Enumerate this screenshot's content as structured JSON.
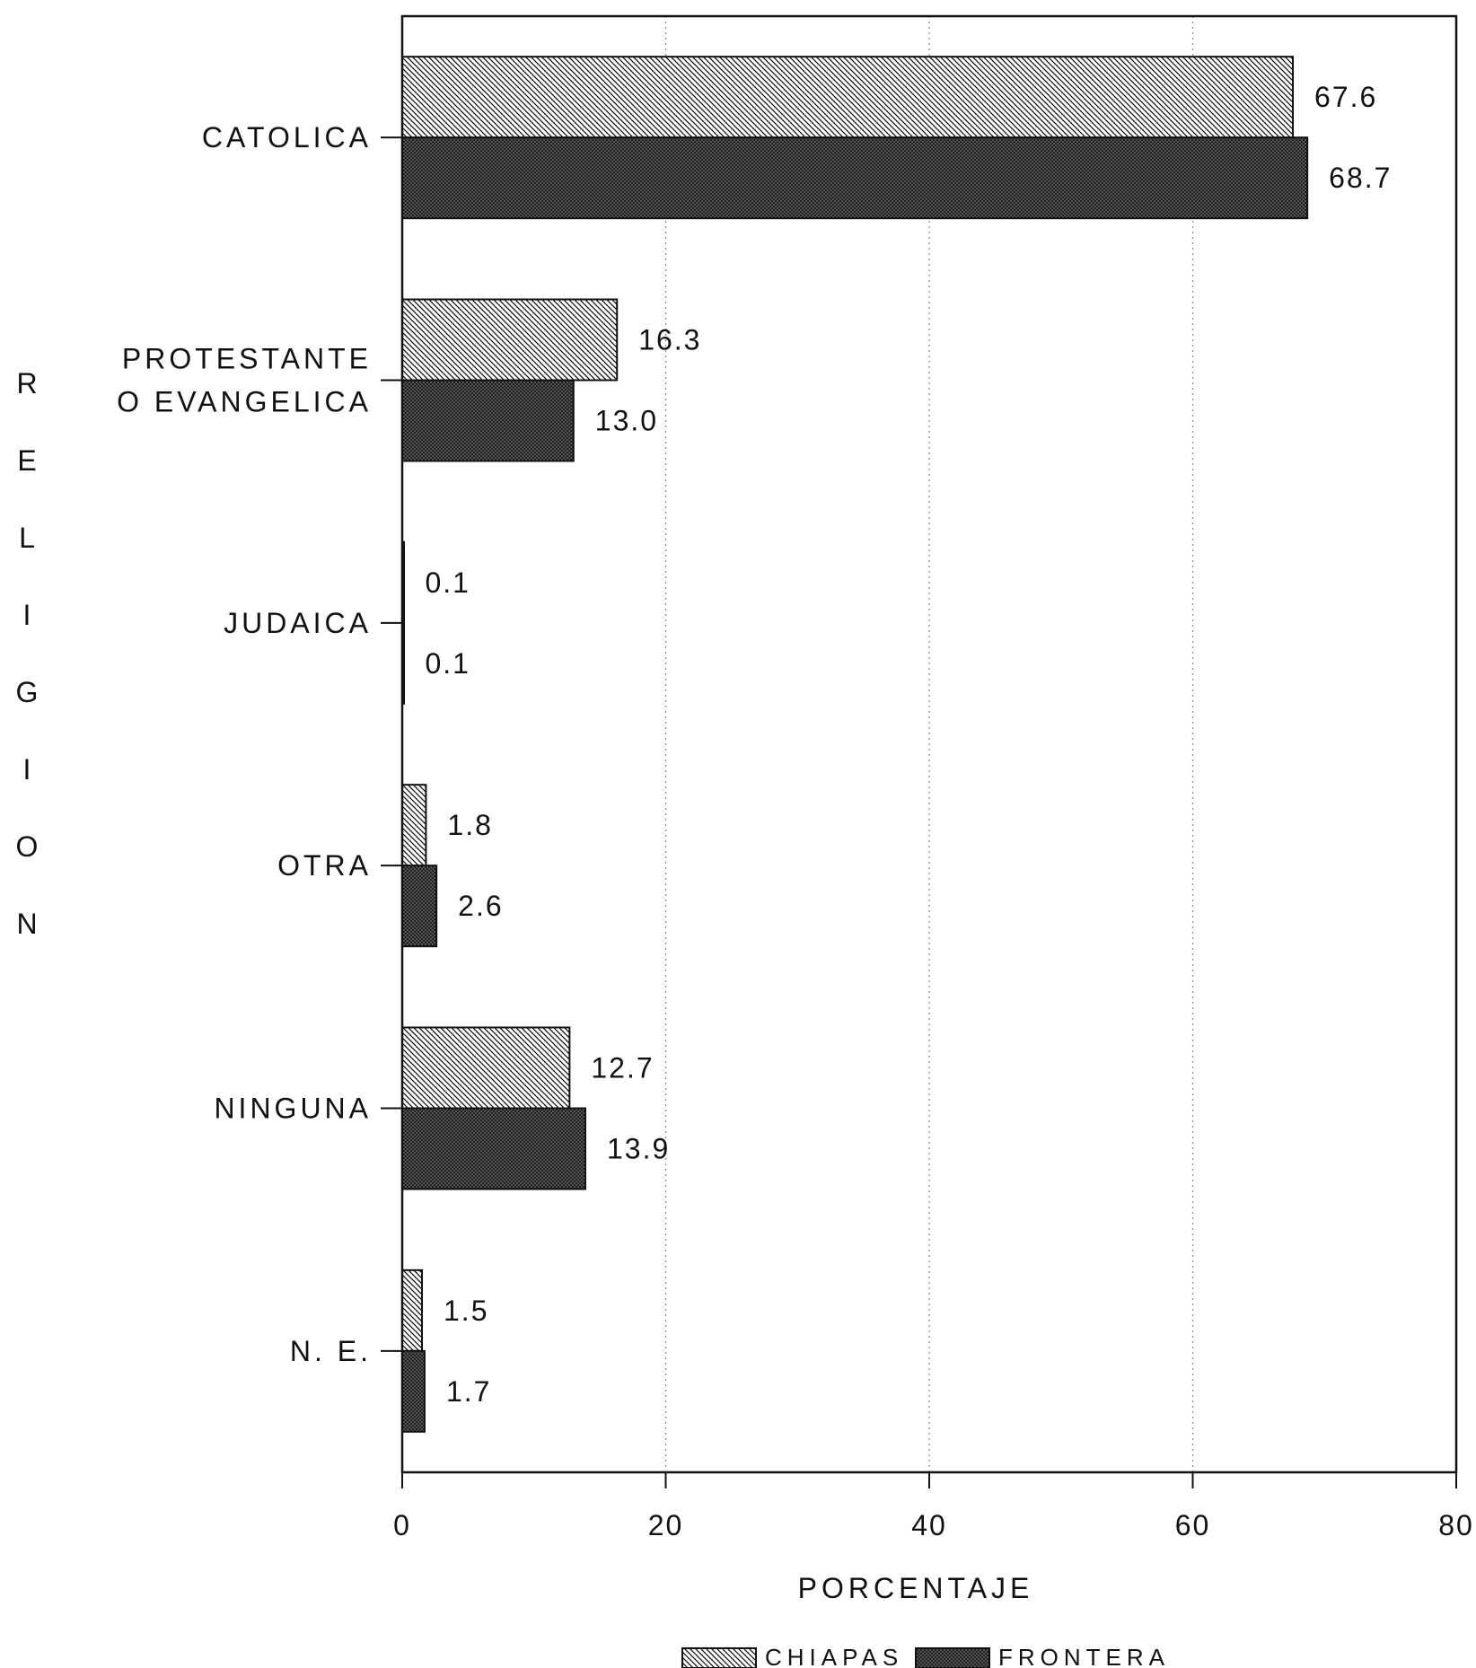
{
  "chart_data": {
    "type": "bar",
    "orientation": "horizontal",
    "categories": [
      "CATOLICA",
      "PROTESTANTE\nO EVANGELICA",
      "JUDAICA",
      "OTRA",
      "NINGUNA",
      "N. E."
    ],
    "series": [
      {
        "name": "CHIAPAS",
        "values": [
          67.6,
          16.3,
          0.1,
          1.8,
          12.7,
          1.5
        ],
        "pattern": "diagonal-hatch"
      },
      {
        "name": "FRONTERA",
        "values": [
          68.7,
          13.0,
          0.1,
          2.6,
          13.9,
          1.7
        ],
        "pattern": "crosshatch"
      }
    ],
    "value_labels": [
      [
        "67.6",
        "16.3",
        "0.1",
        "1.8",
        "12.7",
        "1.5"
      ],
      [
        "68.7",
        "13.0",
        "0.1",
        "2.6",
        "13.9",
        "1.7"
      ]
    ],
    "xlabel": "PORCENTAJE",
    "ylabel": "RELIGION",
    "xlim": [
      0,
      80
    ],
    "xticks": [
      "0",
      "20",
      "40",
      "60",
      "80"
    ],
    "grid": "vertical dotted",
    "legend_position": "bottom"
  }
}
